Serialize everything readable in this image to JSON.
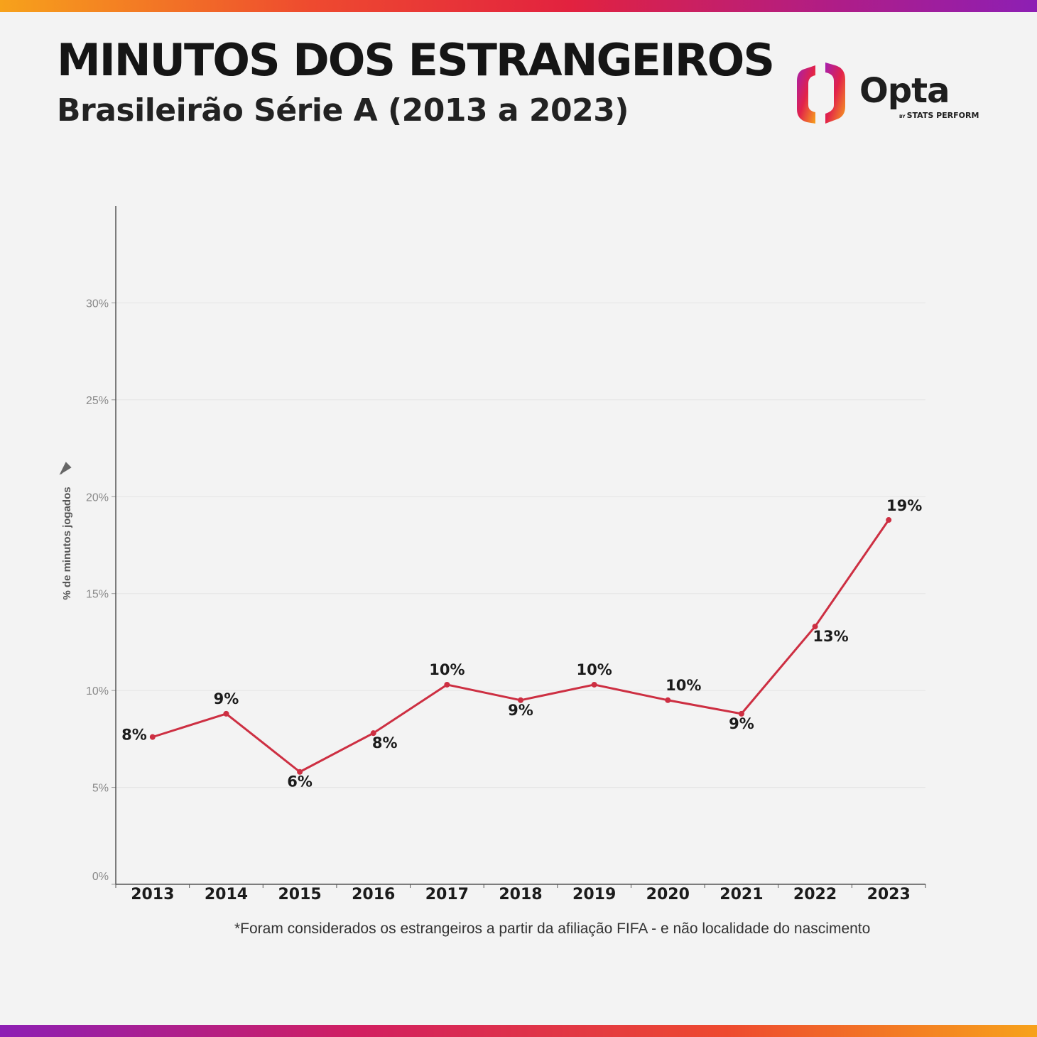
{
  "header": {
    "title": "MINUTOS DOS ESTRANGEIROS",
    "subtitle": "Brasileirão Série A (2013 a 2023)"
  },
  "logo": {
    "wordmark": "Opta",
    "tagline_by": "BY",
    "tagline": "STATS PERFORM"
  },
  "colors": {
    "line": "#cd2f42",
    "gridline": "#e4e4e4",
    "axis": "#555555",
    "text": "#1b1b1b"
  },
  "chart_data": {
    "type": "line",
    "title": "MINUTOS DOS ESTRANGEIROS",
    "ylabel": "% de minutos jogados",
    "xlabel": "",
    "ylim": [
      0,
      35
    ],
    "yticks": [
      0,
      5,
      10,
      15,
      20,
      25,
      30
    ],
    "ytick_labels": [
      "0%",
      "5%",
      "10%",
      "15%",
      "20%",
      "25%",
      "30%"
    ],
    "categories": [
      "2013",
      "2014",
      "2015",
      "2016",
      "2017",
      "2018",
      "2019",
      "2020",
      "2021",
      "2022",
      "2023"
    ],
    "series": [
      {
        "name": "% de minutos jogados",
        "values": [
          7.6,
          8.8,
          5.8,
          7.8,
          10.3,
          9.5,
          10.3,
          9.5,
          8.8,
          13.3,
          18.8
        ],
        "data_labels": [
          "8%",
          "9%",
          "6%",
          "8%",
          "10%",
          "9%",
          "10%",
          "10%",
          "9%",
          "13%",
          "19%"
        ],
        "label_side": [
          "left",
          "above",
          "below",
          "below",
          "above",
          "below",
          "above",
          "above",
          "below",
          "below",
          "above"
        ]
      }
    ],
    "grid": true,
    "legend": "none"
  },
  "footnote": "*Foram considerados os estrangeiros a partir da afiliação FIFA - e não localidade do nascimento"
}
